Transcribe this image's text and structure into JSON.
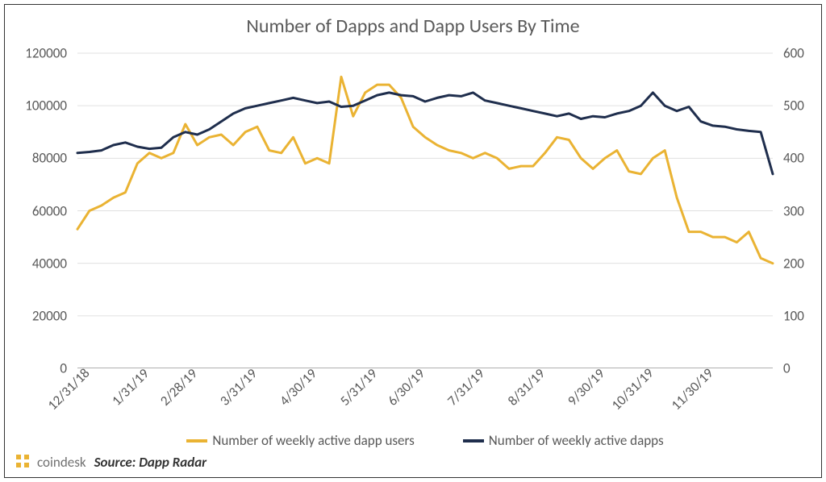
{
  "chart": {
    "type": "line-dual-axis",
    "title": "Number of Dapps and Dapp Users By Time",
    "title_fontsize": 24,
    "title_color": "#595959",
    "background_color": "#ffffff",
    "border_color": "#333333",
    "grid_color": "#e0e0e0",
    "axis_label_color": "#595959",
    "axis_label_fontsize": 17,
    "x": {
      "ticks": [
        "12/31/18",
        "1/31/19",
        "2/28/19",
        "3/31/19",
        "4/30/19",
        "5/31/19",
        "6/30/19",
        "7/31/19",
        "8/31/19",
        "9/30/19",
        "10/31/19",
        "11/30/19"
      ],
      "rotation_deg": -45
    },
    "y_left": {
      "lim": [
        0,
        120000
      ],
      "tick_step": 20000,
      "ticks": [
        0,
        20000,
        40000,
        60000,
        80000,
        100000,
        120000
      ]
    },
    "y_right": {
      "lim": [
        0,
        600
      ],
      "tick_step": 100,
      "ticks": [
        0,
        100,
        200,
        300,
        400,
        500,
        600
      ]
    },
    "series": {
      "users": {
        "label": "Number of weekly active dapp users",
        "axis": "left",
        "color": "#eab333",
        "line_width": 3,
        "values": [
          53000,
          60000,
          62000,
          65000,
          67000,
          78000,
          82000,
          80000,
          82000,
          93000,
          85000,
          88000,
          89000,
          85000,
          90000,
          92000,
          83000,
          82000,
          88000,
          78000,
          80000,
          78000,
          111000,
          96000,
          105000,
          108000,
          108000,
          103000,
          92000,
          88000,
          85000,
          83000,
          82000,
          80000,
          82000,
          80000,
          76000,
          77000,
          77000,
          82000,
          88000,
          87000,
          80000,
          76000,
          80000,
          83000,
          75000,
          74000,
          80000,
          83000,
          65000,
          52000,
          52000,
          50000,
          50000,
          48000,
          52000,
          42000,
          40000
        ]
      },
      "dapps": {
        "label": "Number of weekly active dapps",
        "axis": "right",
        "color": "#1f2e4d",
        "line_width": 3,
        "values": [
          410,
          412,
          415,
          425,
          430,
          422,
          418,
          420,
          440,
          450,
          445,
          455,
          470,
          485,
          495,
          500,
          505,
          510,
          515,
          510,
          505,
          508,
          498,
          500,
          510,
          520,
          525,
          520,
          518,
          508,
          515,
          520,
          518,
          525,
          510,
          505,
          500,
          495,
          490,
          485,
          480,
          485,
          475,
          480,
          478,
          485,
          490,
          500,
          525,
          500,
          490,
          498,
          470,
          462,
          460,
          455,
          452,
          450,
          370
        ]
      }
    },
    "legend": {
      "position": "bottom",
      "items": [
        "users",
        "dapps"
      ]
    }
  },
  "footer": {
    "brand": "coindesk",
    "brand_color": "#707070",
    "brand_icon_color": "#eab333",
    "source_label": "Source: Dapp Radar"
  }
}
